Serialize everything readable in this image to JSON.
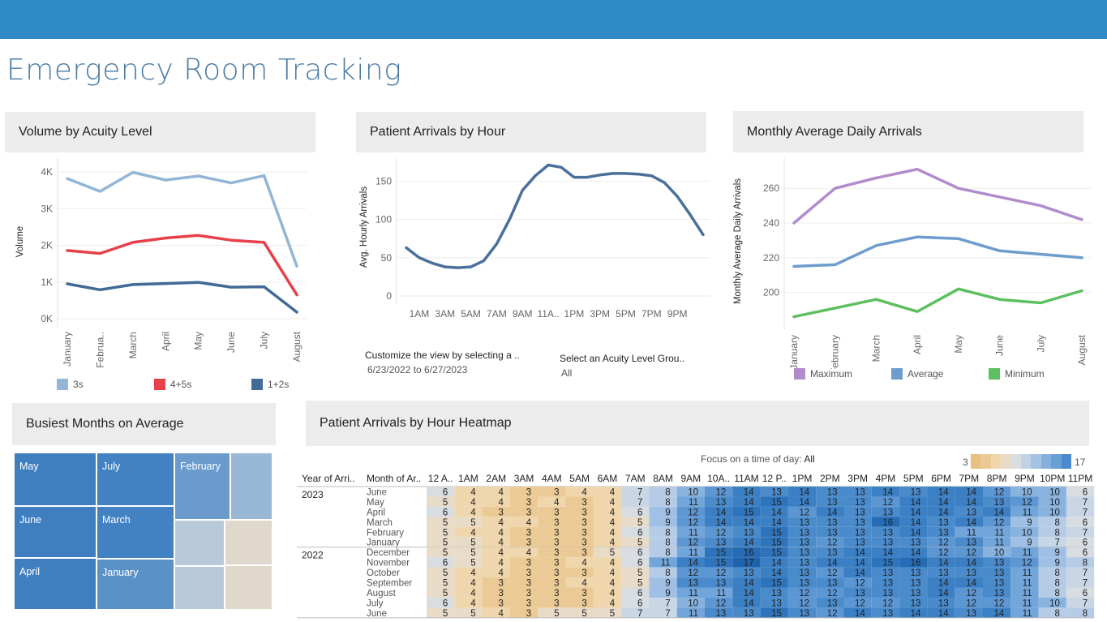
{
  "header": {
    "title": "Emergency Room Tracking"
  },
  "panels": {
    "volume": "Volume by Acuity Level",
    "arrivals": "Patient Arrivals by Hour",
    "monthly": "Monthly Average Daily Arrivals",
    "busiest": "Busiest Months on Average",
    "heatmap": "Patient Arrivals by Hour Heatmap"
  },
  "filters": {
    "date_label": "Customize the view by selecting a ..",
    "date_value": "6/23/2022 to 6/27/2023",
    "acuity_label": "Select an Acuity Level Grou..",
    "acuity_value": "All"
  },
  "heatmap_controls": {
    "focus_label": "Focus on a time of day:",
    "focus_value": "All",
    "scale_min": "3",
    "scale_max": "17"
  },
  "colors": {
    "topbar": "#2f8ac6",
    "s3": "#93b5d6",
    "s45": "#e8404a",
    "s12": "#426a96",
    "max": "#b18ccc",
    "avg": "#6d9ccd",
    "min": "#5cbf60",
    "hourly": "#4a6f9a"
  },
  "chart_data": [
    {
      "id": "volume",
      "type": "line",
      "categories": [
        "January",
        "Februa..",
        "March",
        "April",
        "May",
        "June",
        "July",
        "August"
      ],
      "ylabel": "Volume",
      "ylim": [
        0,
        4200
      ],
      "yticks": [
        0,
        1000,
        2000,
        3000,
        4000
      ],
      "ytick_labels": [
        "0K",
        "1K",
        "2K",
        "3K",
        "4K"
      ],
      "series": [
        {
          "name": "3s",
          "color": "#93b5d6",
          "values": [
            3820,
            3470,
            3990,
            3780,
            3890,
            3700,
            3900,
            1430
          ]
        },
        {
          "name": "4+5s",
          "color": "#e8404a",
          "values": [
            1860,
            1780,
            2080,
            2200,
            2270,
            2140,
            2080,
            650
          ]
        },
        {
          "name": "1+2s",
          "color": "#426a96",
          "values": [
            950,
            790,
            930,
            960,
            990,
            860,
            870,
            180
          ]
        }
      ]
    },
    {
      "id": "arrivals",
      "type": "line",
      "ylabel": "Avg. Hourly Arrivals",
      "ylim": [
        0,
        180
      ],
      "yticks": [
        0,
        50,
        100,
        150
      ],
      "xtick_labels": [
        "1AM",
        "3AM",
        "5AM",
        "7AM",
        "9AM",
        "11A..",
        "1PM",
        "3PM",
        "5PM",
        "7PM",
        "9PM"
      ],
      "x": [
        0,
        1,
        2,
        3,
        4,
        5,
        6,
        7,
        8,
        9,
        10,
        11,
        12,
        13,
        14,
        15,
        16,
        17,
        18,
        19,
        20,
        21,
        22,
        23
      ],
      "series": [
        {
          "name": "",
          "color": "#4a6f9a",
          "values": [
            63,
            50,
            43,
            38,
            37,
            38,
            46,
            68,
            100,
            138,
            157,
            171,
            168,
            155,
            155,
            158,
            160,
            160,
            159,
            157,
            148,
            130,
            106,
            80
          ]
        }
      ]
    },
    {
      "id": "monthly",
      "type": "line",
      "categories": [
        "January",
        "February",
        "March",
        "April",
        "May",
        "June",
        "July",
        "August"
      ],
      "ylabel": "Monthly Average Daily Arrivals",
      "ylim": [
        183,
        276
      ],
      "yticks": [
        200,
        220,
        240,
        260
      ],
      "series": [
        {
          "name": "Maximum",
          "color": "#b18ccc",
          "values": [
            240,
            260,
            266,
            271,
            260,
            255,
            250,
            242
          ]
        },
        {
          "name": "Average",
          "color": "#6d9ccd",
          "values": [
            215,
            216,
            227,
            232,
            231,
            224,
            222,
            220
          ]
        },
        {
          "name": "Minimum",
          "color": "#5cbf60",
          "values": [
            186,
            191,
            196,
            189,
            202,
            196,
            194,
            201
          ]
        }
      ]
    },
    {
      "id": "busiest",
      "type": "treemap",
      "items": [
        {
          "label": "May",
          "color": "#3f7fc0"
        },
        {
          "label": "June",
          "color": "#3f7fc0"
        },
        {
          "label": "April",
          "color": "#3f7fc0"
        },
        {
          "label": "July",
          "color": "#4382c2"
        },
        {
          "label": "March",
          "color": "#4382c2"
        },
        {
          "label": "January",
          "color": "#5a92c8"
        },
        {
          "label": "February",
          "color": "#6b9bcd"
        },
        {
          "label": "",
          "color": "#98b7d4"
        },
        {
          "label": "",
          "color": "#b8cada"
        },
        {
          "label": "",
          "color": "#e0d8cb"
        },
        {
          "label": "",
          "color": "#b8cada"
        },
        {
          "label": "",
          "color": "#e0d8cb"
        }
      ]
    },
    {
      "id": "heatmap",
      "type": "heatmap",
      "row_headers": [
        "Year of Arri..",
        "Month of Ar.."
      ],
      "columns": [
        "12 A..",
        "1AM",
        "2AM",
        "3AM",
        "4AM",
        "5AM",
        "6AM",
        "7AM",
        "8AM",
        "9AM",
        "10A..",
        "11AM",
        "12 P..",
        "1PM",
        "2PM",
        "3PM",
        "4PM",
        "5PM",
        "6PM",
        "7PM",
        "8PM",
        "9PM",
        "10PM",
        "11PM"
      ],
      "groups": [
        {
          "year": "2023",
          "rows": [
            {
              "month": "June",
              "values": [
                6,
                4,
                4,
                3,
                3,
                4,
                4,
                7,
                8,
                10,
                12,
                14,
                13,
                14,
                13,
                13,
                14,
                13,
                14,
                14,
                12,
                10,
                10,
                6
              ]
            },
            {
              "month": "May",
              "values": [
                5,
                4,
                4,
                3,
                4,
                3,
                4,
                7,
                8,
                11,
                13,
                14,
                15,
                14,
                13,
                13,
                12,
                14,
                14,
                14,
                13,
                12,
                10,
                7
              ]
            },
            {
              "month": "April",
              "values": [
                6,
                4,
                3,
                3,
                3,
                3,
                4,
                6,
                9,
                12,
                14,
                15,
                14,
                12,
                14,
                13,
                13,
                14,
                14,
                13,
                14,
                11,
                10,
                7
              ]
            },
            {
              "month": "March",
              "values": [
                5,
                5,
                4,
                4,
                3,
                3,
                4,
                5,
                9,
                12,
                14,
                14,
                14,
                13,
                13,
                13,
                16,
                14,
                13,
                14,
                12,
                9,
                8,
                6
              ]
            },
            {
              "month": "February",
              "values": [
                5,
                4,
                4,
                3,
                3,
                3,
                4,
                6,
                8,
                11,
                12,
                13,
                15,
                13,
                13,
                13,
                13,
                14,
                13,
                11,
                11,
                10,
                8,
                7
              ]
            },
            {
              "month": "January",
              "values": [
                5,
                5,
                4,
                3,
                3,
                3,
                4,
                5,
                8,
                12,
                13,
                14,
                15,
                13,
                12,
                13,
                13,
                13,
                12,
                13,
                11,
                9,
                7,
                6
              ]
            }
          ]
        },
        {
          "year": "2022",
          "rows": [
            {
              "month": "December",
              "values": [
                5,
                5,
                4,
                4,
                3,
                3,
                5,
                6,
                8,
                11,
                15,
                16,
                15,
                13,
                13,
                14,
                14,
                14,
                12,
                12,
                10,
                11,
                9,
                6
              ]
            },
            {
              "month": "November",
              "values": [
                6,
                5,
                4,
                3,
                3,
                4,
                4,
                6,
                11,
                14,
                15,
                17,
                14,
                13,
                14,
                14,
                15,
                16,
                14,
                14,
                13,
                12,
                9,
                8
              ]
            },
            {
              "month": "October",
              "values": [
                5,
                4,
                4,
                3,
                3,
                3,
                4,
                5,
                8,
                12,
                12,
                13,
                14,
                13,
                12,
                14,
                13,
                13,
                13,
                13,
                13,
                11,
                8,
                7
              ]
            },
            {
              "month": "September",
              "values": [
                5,
                4,
                3,
                3,
                3,
                4,
                4,
                5,
                9,
                13,
                13,
                14,
                15,
                13,
                13,
                12,
                13,
                13,
                14,
                14,
                13,
                11,
                8,
                7
              ]
            },
            {
              "month": "August",
              "values": [
                5,
                4,
                3,
                3,
                3,
                3,
                4,
                6,
                9,
                11,
                11,
                14,
                13,
                12,
                12,
                13,
                13,
                13,
                14,
                12,
                13,
                11,
                8,
                6
              ]
            },
            {
              "month": "July",
              "values": [
                6,
                4,
                3,
                3,
                3,
                3,
                4,
                6,
                7,
                10,
                12,
                14,
                13,
                12,
                13,
                12,
                12,
                13,
                13,
                12,
                12,
                11,
                10,
                7
              ]
            },
            {
              "month": "June",
              "values": [
                5,
                5,
                4,
                3,
                5,
                5,
                5,
                7,
                7,
                11,
                13,
                13,
                15,
                13,
                12,
                14,
                13,
                14,
                14,
                13,
                14,
                11,
                8,
                8
              ]
            }
          ]
        }
      ]
    }
  ]
}
